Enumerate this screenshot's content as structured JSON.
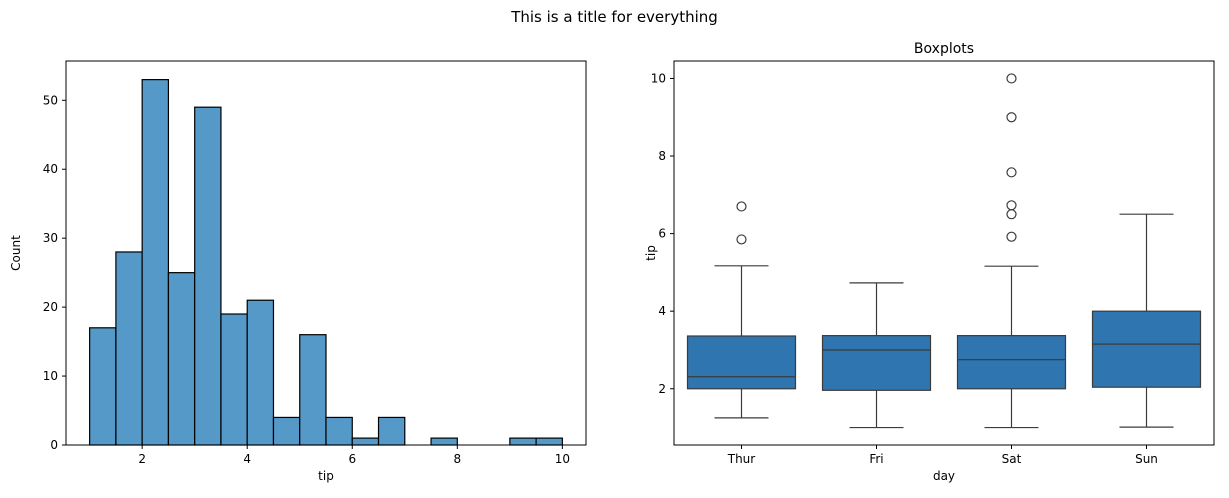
{
  "suptitle": "This is a title for everything",
  "colors": {
    "bar": "#5499c7",
    "box": "#2f75b0",
    "edge": "#000000",
    "whisker": "#3b3b3b"
  },
  "chart_data": [
    {
      "type": "bar",
      "title": "",
      "xlabel": "tip",
      "ylabel": "Count",
      "xlim": [
        0.55,
        10.45
      ],
      "ylim": [
        0,
        55.7
      ],
      "xticks": [
        2,
        4,
        6,
        8,
        10
      ],
      "yticks": [
        0,
        10,
        20,
        30,
        40,
        50
      ],
      "bins": [
        {
          "x0": 1.0,
          "x1": 1.5,
          "count": 17
        },
        {
          "x0": 1.5,
          "x1": 2.0,
          "count": 28
        },
        {
          "x0": 2.0,
          "x1": 2.5,
          "count": 53
        },
        {
          "x0": 2.5,
          "x1": 3.0,
          "count": 25
        },
        {
          "x0": 3.0,
          "x1": 3.5,
          "count": 49
        },
        {
          "x0": 3.5,
          "x1": 4.0,
          "count": 19
        },
        {
          "x0": 4.0,
          "x1": 4.5,
          "count": 21
        },
        {
          "x0": 4.5,
          "x1": 5.0,
          "count": 4
        },
        {
          "x0": 5.0,
          "x1": 5.5,
          "count": 16
        },
        {
          "x0": 5.5,
          "x1": 6.0,
          "count": 4
        },
        {
          "x0": 6.0,
          "x1": 6.5,
          "count": 1
        },
        {
          "x0": 6.5,
          "x1": 7.0,
          "count": 4
        },
        {
          "x0": 7.0,
          "x1": 7.5,
          "count": 0
        },
        {
          "x0": 7.5,
          "x1": 8.0,
          "count": 1
        },
        {
          "x0": 8.0,
          "x1": 8.5,
          "count": 0
        },
        {
          "x0": 8.5,
          "x1": 9.0,
          "count": 0
        },
        {
          "x0": 9.0,
          "x1": 9.5,
          "count": 1
        },
        {
          "x0": 9.5,
          "x1": 10.0,
          "count": 1
        }
      ]
    },
    {
      "type": "box",
      "title": "Boxplots",
      "xlabel": "day",
      "ylabel": "tip",
      "ylim": [
        0.55,
        10.45
      ],
      "yticks": [
        2,
        4,
        6,
        8,
        10
      ],
      "categories": [
        "Thur",
        "Fri",
        "Sat",
        "Sun"
      ],
      "boxes": [
        {
          "category": "Thur",
          "whisker_low": 1.25,
          "q1": 2.0,
          "median": 2.31,
          "q3": 3.36,
          "whisker_high": 5.17,
          "outliers": [
            5.85,
            6.7
          ]
        },
        {
          "category": "Fri",
          "whisker_low": 1.0,
          "q1": 1.96,
          "median": 3.0,
          "q3": 3.37,
          "whisker_high": 4.73,
          "outliers": []
        },
        {
          "category": "Sat",
          "whisker_low": 1.0,
          "q1": 2.0,
          "median": 2.75,
          "q3": 3.37,
          "whisker_high": 5.16,
          "outliers": [
            5.92,
            6.5,
            6.73,
            7.58,
            9.0,
            10.0
          ]
        },
        {
          "category": "Sun",
          "whisker_low": 1.01,
          "q1": 2.04,
          "median": 3.15,
          "q3": 4.0,
          "whisker_high": 6.5,
          "outliers": []
        }
      ]
    }
  ]
}
